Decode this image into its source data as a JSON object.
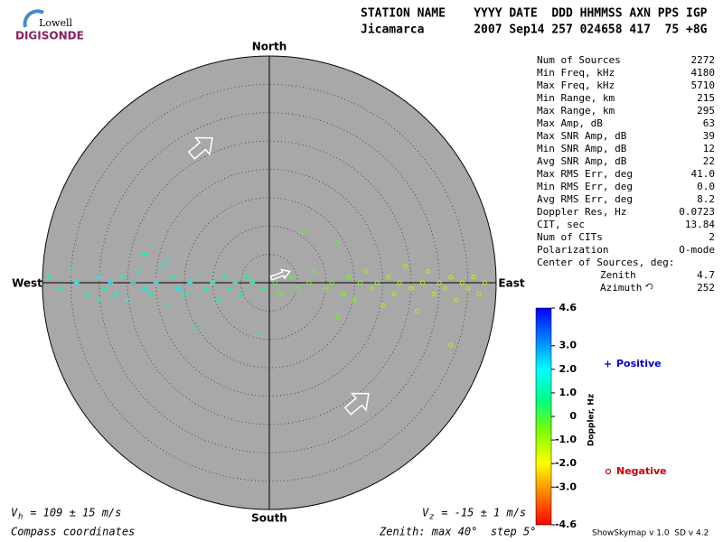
{
  "header": {
    "logo_top": "Lowell",
    "logo_bottom": "DIGISONDE",
    "columns": "STATION NAME    YYYY DATE  DDD HHMMSS AXN PPS IGP",
    "values": "Jicamarca       2007 Sep14 257 024658 417  75 +8G"
  },
  "stats": [
    [
      "Num of Sources",
      "2272"
    ],
    [
      "Min Freq, kHz",
      "4180"
    ],
    [
      "Max Freq, kHz",
      "5710"
    ],
    [
      "Min Range, km",
      "215"
    ],
    [
      "Max Range, km",
      "295"
    ],
    [
      "Max Amp, dB",
      "63"
    ],
    [
      "Max SNR Amp, dB",
      "39"
    ],
    [
      "Min SNR Amp, dB",
      "12"
    ],
    [
      "Avg SNR Amp, dB",
      "22"
    ],
    [
      "Max RMS Err, deg",
      "41.0"
    ],
    [
      "Min RMS Err, deg",
      "0.0"
    ],
    [
      "Avg RMS Err, deg",
      "8.2"
    ],
    [
      "Doppler Res, Hz",
      "0.0723"
    ],
    [
      "CIT, sec",
      "13.84"
    ],
    [
      "Num of CITs",
      "2"
    ],
    [
      "Polarization",
      "O-mode"
    ]
  ],
  "center_of_sources": {
    "title": "Center of Sources, deg:",
    "zenith_label": "Zenith",
    "zenith": "4.7",
    "azimuth_label": "Azimuth",
    "azimuth": "252"
  },
  "footer": {
    "vh_symbol": "V",
    "vh_sub": "h",
    "vh_text": " = 109 ± 15 m/s",
    "vz_symbol": "V",
    "vz_sub": "z",
    "vz_text": " = -15 ± 1 m/s",
    "coords": "Compass coordinates",
    "zenith": "Zenith: max 40°  step 5°",
    "version": "ShowSkymap v 1.0  SD v 4.2"
  },
  "chart_data": {
    "type": "skymap",
    "directions": {
      "north": "North",
      "south": "South",
      "west": "West",
      "east": "East"
    },
    "rlim": [
      0,
      40
    ],
    "rticks": [
      5,
      10,
      15,
      20,
      25,
      30,
      35,
      40
    ],
    "colorbar_label": "Doppler, Hz",
    "clim": [
      -4.6,
      4.6
    ],
    "colors": [
      "#ff0000",
      "#ff8000",
      "#ffff00",
      "#80ff00",
      "#00ff80",
      "#00ffff",
      "#0080ff",
      "#0000ff"
    ],
    "cticks": [
      4.6,
      {
        "value": 3,
        "label": "3.0"
      },
      {
        "value": 2,
        "label": "2.0"
      },
      {
        "value": 1,
        "label": "1.0"
      },
      0,
      {
        "value": -1,
        "label": "-1.0"
      },
      {
        "value": -2,
        "label": "-2.0"
      },
      {
        "value": -3,
        "label": "-3.0"
      },
      -4.6
    ],
    "series": [
      {
        "name": "Positive",
        "marker": "plus",
        "color": "#0000cc",
        "x": [
          -39,
          -37,
          -35,
          -34,
          -32,
          -30,
          -29,
          -28,
          -27,
          -26,
          -25,
          -24,
          -23,
          -22,
          -21,
          -20,
          -19,
          -18,
          -17,
          -16,
          -15,
          -14,
          -13,
          -12,
          -11,
          -10,
          -9,
          -8,
          -7,
          -6,
          -5,
          -4,
          -3,
          -2,
          -1,
          -18,
          -30,
          -22
        ],
        "y": [
          1,
          -1,
          2,
          0,
          -2,
          1,
          -1,
          0,
          -2,
          1,
          -3,
          0,
          2,
          -1,
          -2,
          0,
          3,
          -4,
          1,
          -1,
          -2,
          0,
          -8,
          2,
          -1,
          0,
          -3,
          1,
          -1,
          0,
          -2,
          1,
          0,
          -9,
          -1,
          4,
          -3,
          5
        ],
        "values": [
          1.2,
          1.5,
          1.0,
          1.8,
          1.3,
          2.0,
          1.1,
          2.3,
          1.6,
          1.4,
          1.9,
          2.5,
          1.2,
          1.7,
          1.0,
          2.2,
          1.5,
          1.3,
          0.9,
          1.8,
          1.1,
          2.0,
          1.4,
          0.8,
          1.6,
          1.2,
          0.9,
          1.0,
          0.7,
          1.3,
          0.8,
          0.6,
          0.9,
          1.1,
          0.5,
          2.1,
          1.4,
          1.2
        ]
      },
      {
        "name": "Negative",
        "marker": "circle",
        "color": "#cc0000",
        "x": [
          1,
          2,
          4,
          5,
          7,
          8,
          10,
          11,
          12,
          13,
          14,
          15,
          16,
          17,
          18,
          19,
          20,
          21,
          22,
          23,
          24,
          25,
          26,
          27,
          28,
          29,
          30,
          31,
          32,
          33,
          34,
          35,
          36,
          37,
          38,
          32,
          12,
          6
        ],
        "y": [
          0,
          -2,
          1,
          -1,
          0,
          2,
          -1,
          0,
          7,
          -2,
          1,
          -3,
          0,
          2,
          -1,
          0,
          -4,
          1,
          -2,
          0,
          3,
          -1,
          -5,
          0,
          2,
          -2,
          0,
          -1,
          1,
          -3,
          0,
          -1,
          1,
          -2,
          0,
          -11,
          -6,
          9
        ],
        "values": [
          -0.1,
          -0.2,
          -0.3,
          -0.2,
          -0.4,
          -0.3,
          -0.5,
          -0.4,
          -0.2,
          -0.6,
          -0.5,
          -0.7,
          -0.6,
          -0.8,
          -0.7,
          -0.9,
          -0.8,
          -1.0,
          -0.9,
          -1.1,
          -0.9,
          -1.2,
          -1.0,
          -1.1,
          -1.2,
          -1.0,
          -1.3,
          -1.1,
          -1.2,
          -1.0,
          -1.3,
          -1.1,
          -1.2,
          -1.0,
          -1.1,
          -1.0,
          -0.3,
          -0.2
        ]
      }
    ]
  }
}
